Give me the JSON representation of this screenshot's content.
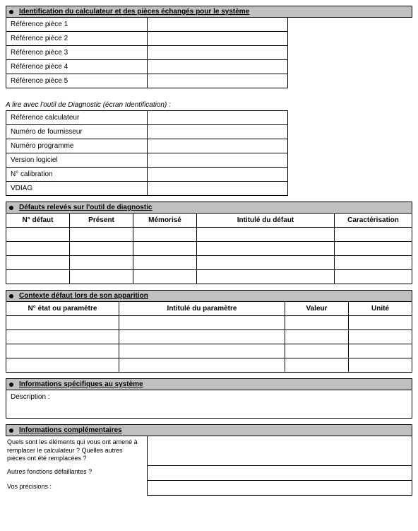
{
  "section1": {
    "title": "Identification du calculateur et des pièces échangés pour le système",
    "rows": [
      "Référence pièce 1",
      "Référence pièce 2",
      "Référence pièce 3",
      "Référence pièce 4",
      "Référence pièce 5"
    ]
  },
  "diag_subtitle": "A lire avec l'outil de Diagnostic (écran Identification) :",
  "diag_rows": [
    "Référence calculateur",
    "Numéro de fournisseur",
    "Numéro programme",
    "Version logiciel",
    "N° calibration",
    "VDIAG"
  ],
  "section2": {
    "title": "Défauts relevés sur l'outil de diagnostic",
    "headers": [
      "N° défaut",
      "Présent",
      "Mémorisé",
      "Intitulé du défaut",
      "Caractérisation"
    ],
    "row_count": 4
  },
  "section3": {
    "title": "Contexte défaut lors de son apparition",
    "headers": [
      "N° état ou paramètre",
      "Intitulé du paramètre",
      "Valeur",
      "Unité"
    ],
    "row_count": 4
  },
  "section4": {
    "title": "Informations spécifiques au système",
    "desc_label": "Description :"
  },
  "section5": {
    "title": "Informations complémentaires",
    "q1": "Quels sont les éléments qui vous ont amené à remplacer le calculateur ? Quelles autres pièces ont été remplacées ?",
    "q2": "Autres fonctions défaillantes ?",
    "q3": "Vos précisions :"
  },
  "colors": {
    "header_bg": "#c0c0c0",
    "border": "#000000",
    "text": "#000000",
    "background": "#ffffff"
  }
}
